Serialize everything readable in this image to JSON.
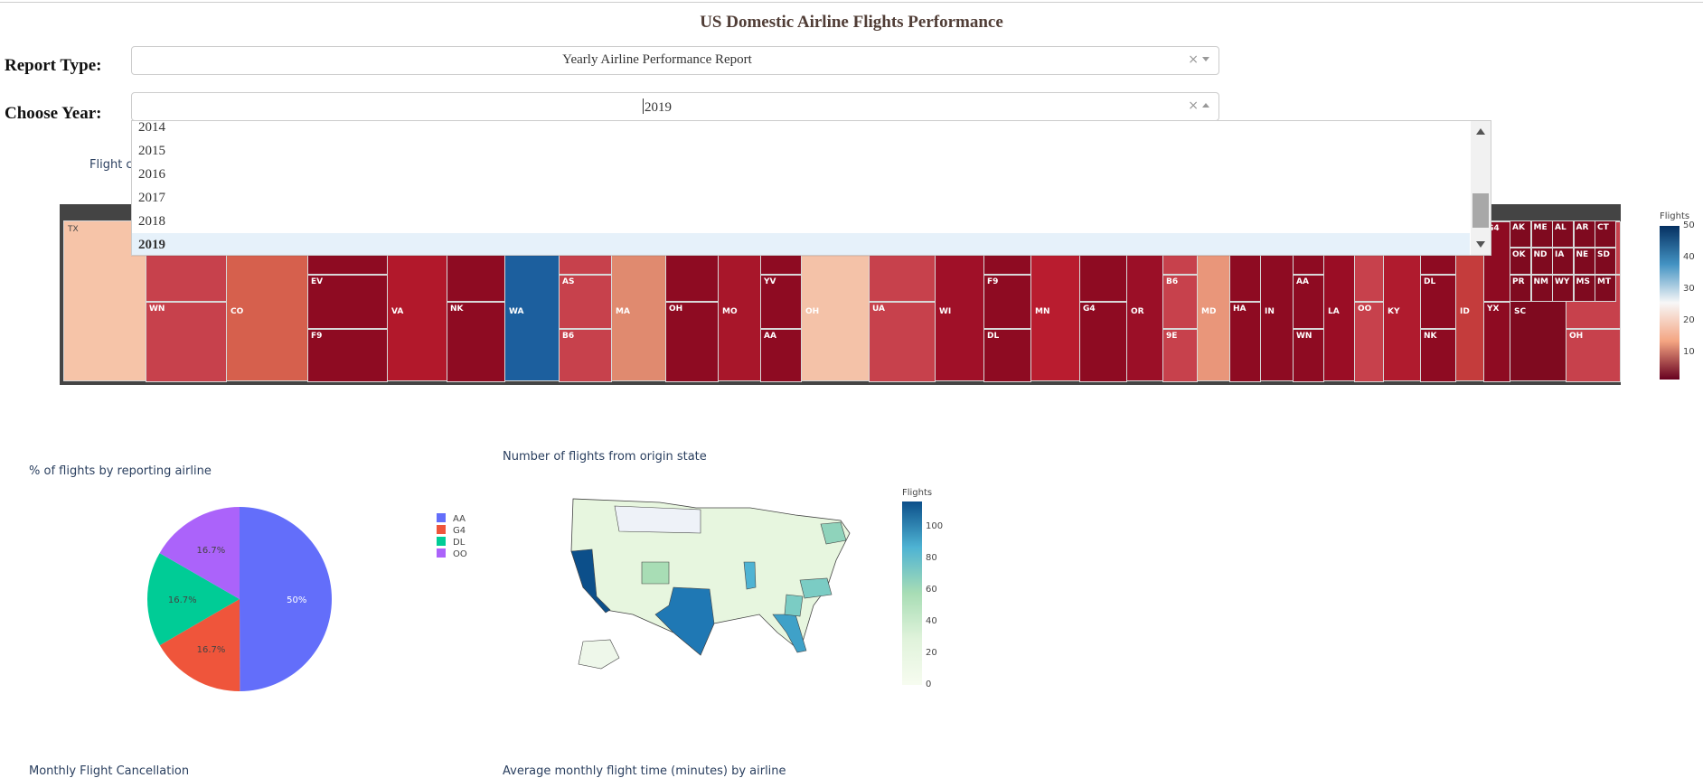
{
  "page": {
    "title": "US Domestic Airline Flights Performance"
  },
  "controls": {
    "report_type_label": "Report Type:",
    "report_type_value": "Yearly Airline Performance Report",
    "year_label": "Choose Year:",
    "year_value": "2019",
    "clear_glyph": "×"
  },
  "year_dropdown": {
    "options": [
      "2014",
      "2015",
      "2016",
      "2017",
      "2018",
      "2019"
    ],
    "selected": "2019"
  },
  "treemap": {
    "title": "Flight c",
    "colorbar_title": "Flights",
    "colorbar_ticks": [
      "50",
      "40",
      "30",
      "20",
      "10"
    ],
    "state_labels": [
      "TX",
      "CO",
      "VA",
      "WA",
      "MA",
      "MO",
      "OH",
      "WI",
      "MN",
      "OR",
      "MD",
      "IN",
      "LA",
      "KY",
      "ID",
      "SC",
      "AK",
      "ME",
      "AL",
      "AR",
      "CT",
      "OK",
      "ND",
      "IA",
      "NE",
      "SD",
      "PR",
      "NM",
      "WY",
      "MS",
      "MT"
    ],
    "carrier_labels": [
      "AA",
      "WN",
      "UA",
      "OO",
      "EV",
      "F9",
      "DL",
      "NK",
      "G4",
      "YX",
      "AS",
      "B6",
      "9E",
      "OH",
      "HA",
      "MQ",
      "YV"
    ]
  },
  "pie": {
    "title": "% of flights by reporting airline",
    "slices": [
      {
        "label": "AA",
        "value": 50,
        "text": "50%",
        "color": "#636efa"
      },
      {
        "label": "G4",
        "value": 16.7,
        "text": "16.7%",
        "color": "#ef553b"
      },
      {
        "label": "DL",
        "value": 16.7,
        "text": "16.7%",
        "color": "#00cc96"
      },
      {
        "label": "OO",
        "value": 16.7,
        "text": "16.7%",
        "color": "#ab63fa"
      }
    ]
  },
  "map": {
    "title": "Number of flights from origin state",
    "colorbar_title": "Flights",
    "colorbar_ticks": [
      "100",
      "80",
      "60",
      "40",
      "20",
      "0"
    ]
  },
  "bottom": {
    "left_title": "Monthly Flight Cancellation",
    "right_title": "Average monthly flight time (minutes) by airline"
  }
}
